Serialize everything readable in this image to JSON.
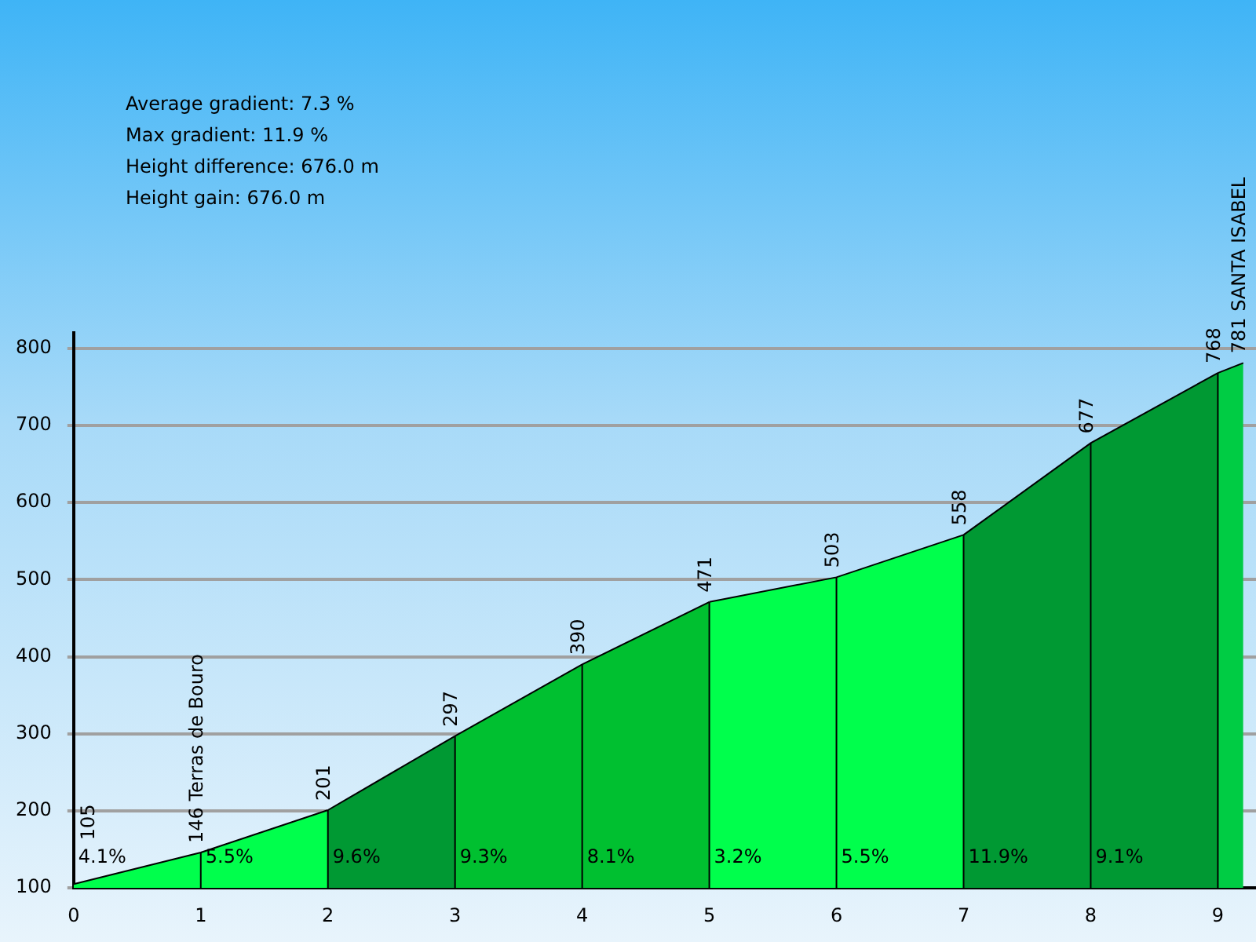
{
  "chart_data": {
    "type": "area",
    "series": [
      {
        "x": [
          0,
          1,
          2
        ],
        "values": [
          105,
          146,
          201
        ],
        "color": "#00ff4c",
        "value_labels": [
          "105",
          "146 Terras de Bouro",
          "201"
        ]
      },
      {
        "x": [
          2,
          3
        ],
        "values": [
          201,
          297
        ],
        "color": "#009933",
        "value_labels": [
          null,
          "297"
        ]
      },
      {
        "x": [
          3,
          4,
          5
        ],
        "values": [
          297,
          390,
          471
        ],
        "color": "#00c030",
        "value_labels": [
          null,
          "390",
          "471"
        ]
      },
      {
        "x": [
          5,
          6,
          7
        ],
        "values": [
          471,
          503,
          558
        ],
        "color": "#00ff4c",
        "value_labels": [
          null,
          "503",
          "558"
        ]
      },
      {
        "x": [
          7,
          8,
          9
        ],
        "values": [
          558,
          677,
          768
        ],
        "color": "#009933",
        "value_labels": [
          null,
          "677",
          "768"
        ]
      },
      {
        "x": [
          9,
          9.2
        ],
        "values": [
          768,
          781
        ],
        "color": "#00cc44",
        "value_labels": [
          null,
          "781 SANTA ISABEL"
        ]
      }
    ],
    "xlim": [
      0,
      9.3
    ],
    "xticks": [
      0,
      1,
      2,
      3,
      4,
      5,
      6,
      7,
      8,
      9
    ],
    "ylim": [
      100,
      820
    ],
    "yticks": [
      100,
      200,
      300,
      400,
      500,
      600,
      700,
      800
    ],
    "grid": true,
    "legend": false,
    "annotations": [
      "Average gradient: 7.3 %",
      "Max gradient: 11.9 %",
      "Height difference: 676.0 m",
      "Height gain: 676.0 m",
      {
        "text": "4.1%",
        "x": 0,
        "y": 100
      },
      {
        "text": "5.5%",
        "x": 1,
        "y": 100
      },
      {
        "text": "9.6%",
        "x": 2,
        "y": 100
      },
      {
        "text": "9.3%",
        "x": 3,
        "y": 100
      },
      {
        "text": "8.1%",
        "x": 4,
        "y": 100
      },
      {
        "text": "3.2%",
        "x": 5,
        "y": 100
      },
      {
        "text": "5.5%",
        "x": 6,
        "y": 100
      },
      {
        "text": "11.9%",
        "x": 7,
        "y": 100
      },
      {
        "text": "9.1%",
        "x": 8,
        "y": 100
      }
    ]
  }
}
